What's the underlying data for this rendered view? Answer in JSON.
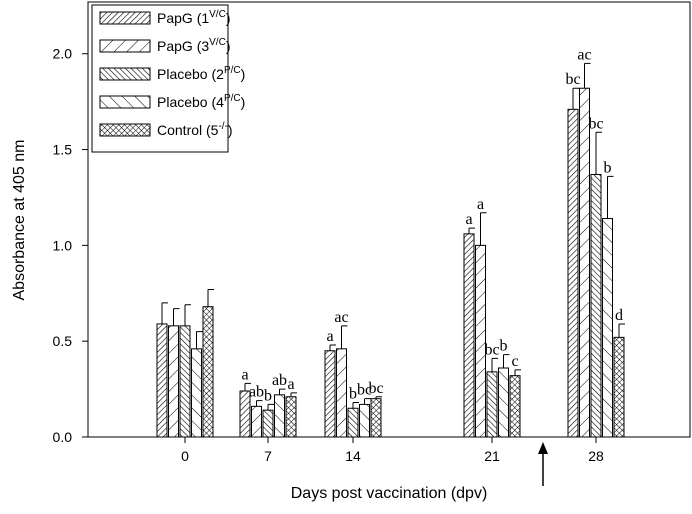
{
  "chart_data": {
    "type": "bar",
    "x_label": "Days post vaccination (dpv)",
    "y_label": "Absorbance at 405 nm",
    "categories": [
      "0",
      "7",
      "14",
      "21",
      "28"
    ],
    "ylim": [
      0,
      2.27
    ],
    "yticks": [
      {
        "value": 0,
        "label": "0.0"
      },
      0.5,
      {
        "value": 1,
        "label": "1.0"
      },
      1.5,
      {
        "value": 2,
        "label": "2.0"
      }
    ],
    "legend": "upper left",
    "series": [
      {
        "name": [
          "PapG (1",
          "V/C",
          ")"
        ],
        "color": "#000000",
        "hatch": "dense-forward",
        "values": [
          0.59,
          0.24,
          0.45,
          1.06,
          1.71
        ],
        "errors": [
          0.11,
          0.04,
          0.03,
          0.03,
          0.11
        ],
        "letters": [
          null,
          "a",
          "a",
          "a",
          "bc"
        ]
      },
      {
        "name": [
          "PapG (3",
          "V/C",
          ")"
        ],
        "color": "#000000",
        "hatch": "sparse-forward",
        "values": [
          0.58,
          0.16,
          0.46,
          1.0,
          1.82
        ],
        "errors": [
          0.09,
          0.03,
          0.12,
          0.17,
          0.13
        ],
        "letters": [
          null,
          "ab",
          "ac",
          "a",
          "ac"
        ]
      },
      {
        "name": [
          "Placebo (2",
          "P/C",
          ")"
        ],
        "color": "#000000",
        "hatch": "dense-back",
        "values": [
          0.58,
          0.14,
          0.15,
          0.34,
          1.37
        ],
        "errors": [
          0.11,
          0.03,
          0.03,
          0.07,
          0.22
        ],
        "letters": [
          null,
          "b",
          "b",
          "bc",
          "bc"
        ]
      },
      {
        "name": [
          "Placebo (4",
          "P/C",
          ")"
        ],
        "color": "#000000",
        "hatch": "sparse-back",
        "values": [
          0.46,
          0.22,
          0.17,
          0.36,
          1.14
        ],
        "errors": [
          0.09,
          0.03,
          0.03,
          0.07,
          0.22
        ],
        "letters": [
          null,
          "ab",
          "bc",
          "b",
          "b"
        ]
      },
      {
        "name": [
          "Control (5",
          "-/-",
          ")"
        ],
        "color": "#000000",
        "hatch": "cross",
        "values": [
          0.68,
          0.21,
          0.2,
          0.32,
          0.52
        ],
        "errors": [
          0.09,
          0.02,
          0.01,
          0.03,
          0.07
        ],
        "letters": [
          null,
          "a",
          "bc",
          "c",
          "d"
        ]
      }
    ]
  }
}
